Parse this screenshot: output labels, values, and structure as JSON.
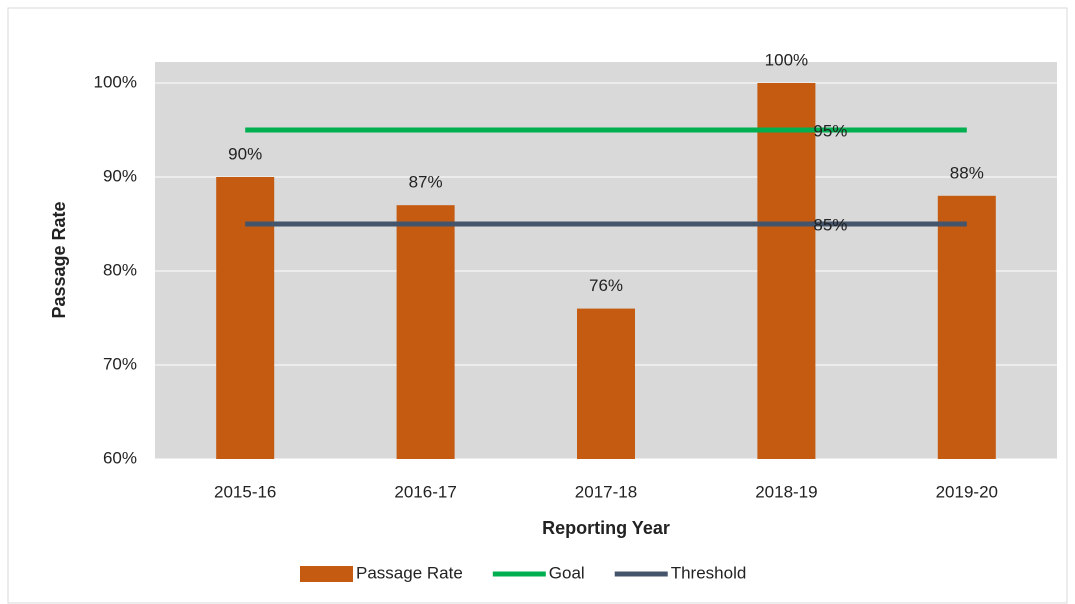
{
  "chart_data": {
    "type": "bar",
    "categories": [
      "2015-16",
      "2016-17",
      "2017-18",
      "2018-19",
      "2019-20"
    ],
    "xlabel": "Reporting Year",
    "ylabel": "Passage Rate",
    "ylim": [
      60,
      100
    ],
    "yticks": [
      {
        "value": 60,
        "label": "60%"
      },
      {
        "value": 70,
        "label": "70%"
      },
      {
        "value": 80,
        "label": "80%"
      },
      {
        "value": 90,
        "label": "90%"
      },
      {
        "value": 100,
        "label": "100%"
      }
    ],
    "grid": true,
    "legend": "bottom",
    "series": [
      {
        "name": "Passage Rate",
        "type": "bar",
        "color": "#c55a11",
        "values": [
          90,
          87,
          76,
          100,
          88
        ],
        "value_labels": [
          "90%",
          "87%",
          "76%",
          "100%",
          "88%"
        ]
      },
      {
        "name": "Goal",
        "type": "line",
        "color": "#00b050",
        "values": [
          95,
          95,
          95,
          95,
          95
        ],
        "value_labels": [
          null,
          null,
          null,
          "95%",
          null
        ]
      },
      {
        "name": "Threshold",
        "type": "line",
        "color": "#44546a",
        "values": [
          85,
          85,
          85,
          85,
          85
        ],
        "value_labels": [
          null,
          null,
          null,
          "85%",
          null
        ]
      }
    ]
  }
}
